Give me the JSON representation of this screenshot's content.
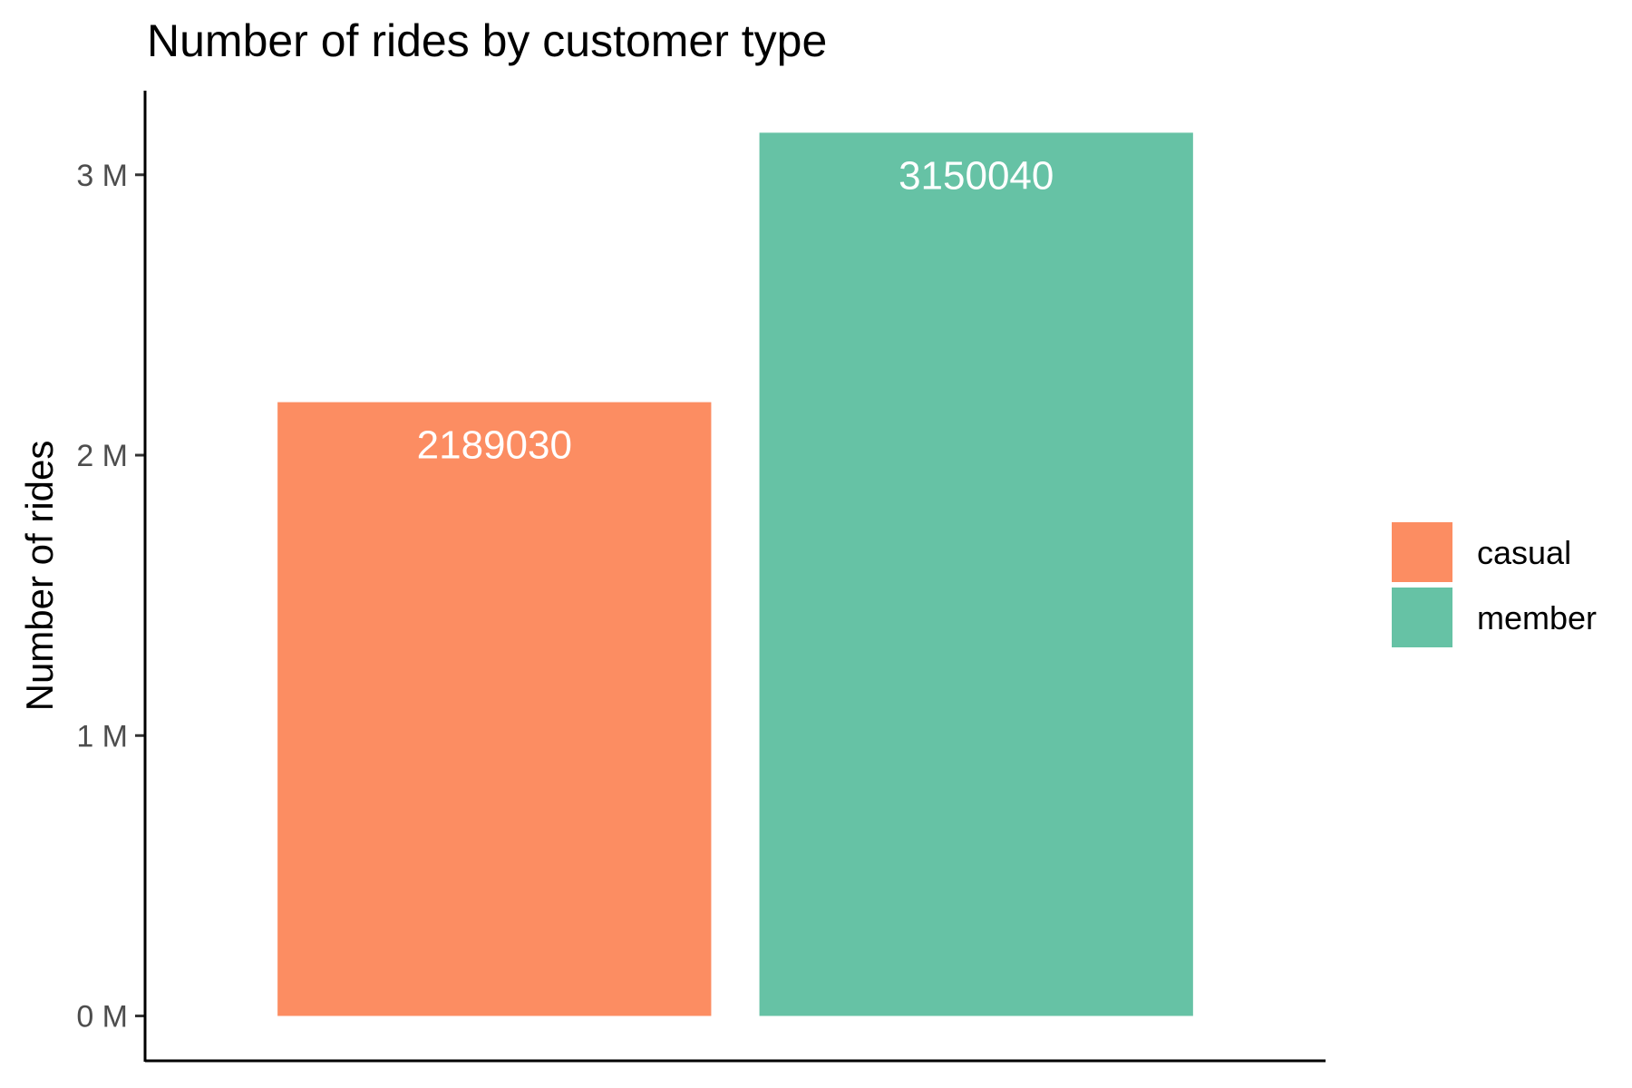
{
  "chart_data": {
    "type": "bar",
    "title": "Number of rides by customer type",
    "xlabel": "",
    "ylabel": "Number of rides",
    "categories": [
      "casual",
      "member"
    ],
    "values": [
      2189030,
      3150040
    ],
    "data_labels": [
      "2189030",
      "3150040"
    ],
    "colors": [
      "#fc8d62",
      "#66c2a5"
    ],
    "ylim": [
      -160000,
      3300000
    ],
    "y_ticks": [
      {
        "value": 0,
        "label": "0 M"
      },
      {
        "value": 1000000,
        "label": "1 M"
      },
      {
        "value": 2000000,
        "label": "2 M"
      },
      {
        "value": 3000000,
        "label": "3 M"
      }
    ],
    "legend": {
      "placement": "right",
      "entries": [
        {
          "label": "casual",
          "color": "#fc8d62"
        },
        {
          "label": "member",
          "color": "#66c2a5"
        }
      ]
    },
    "grid": false
  }
}
